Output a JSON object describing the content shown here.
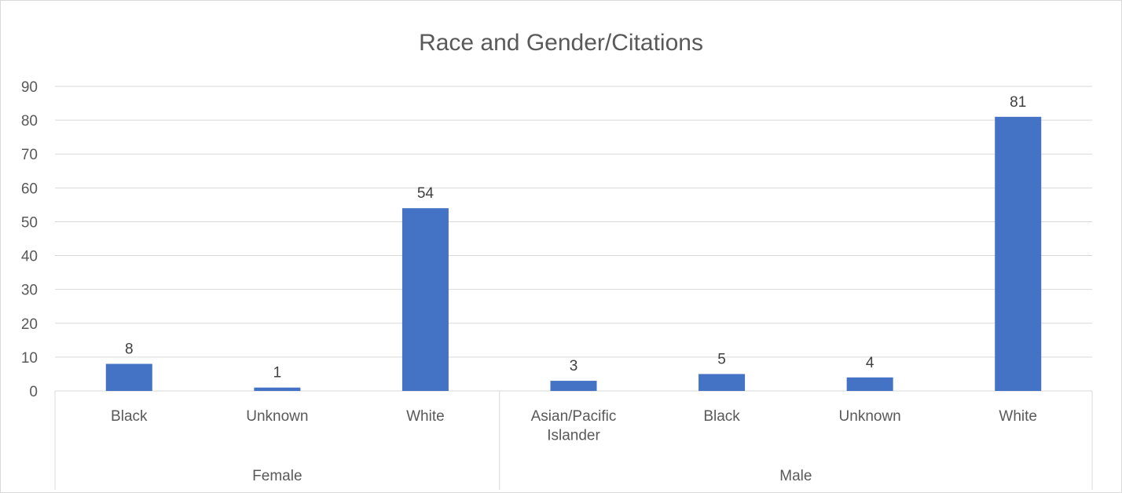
{
  "chart_data": {
    "type": "bar",
    "title": "Race and Gender/Citations",
    "xlabel": "",
    "ylabel": "",
    "ylim": [
      0,
      90
    ],
    "ytick_step": 10,
    "grid": true,
    "legend": "none",
    "colors": {
      "bar": "#4472c4",
      "grid": "#d9d9d9",
      "text": "#595959"
    },
    "groups": [
      {
        "name": "Female",
        "categories": [
          "Black",
          "Unknown",
          "White"
        ],
        "values": [
          8,
          1,
          54
        ]
      },
      {
        "name": "Male",
        "categories": [
          "Asian/Pacific Islander",
          "Black",
          "Unknown",
          "White"
        ],
        "values": [
          3,
          5,
          4,
          81
        ]
      }
    ]
  }
}
